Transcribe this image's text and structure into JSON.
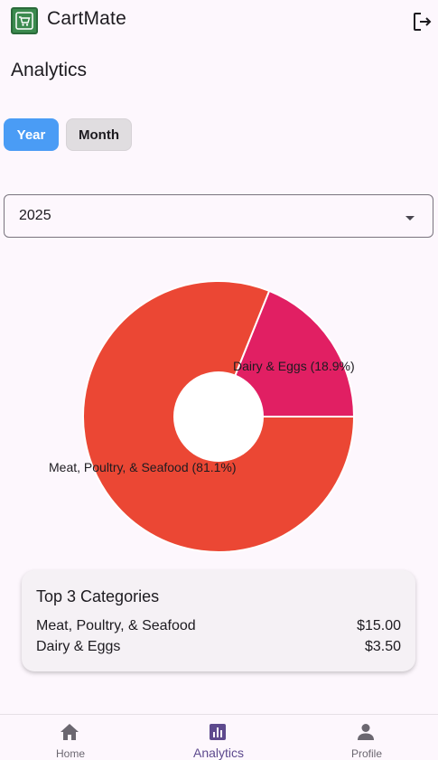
{
  "app": {
    "title": "CartMate",
    "logo_icon": "shopping-cart-icon",
    "logout_icon": "logout-icon"
  },
  "page": {
    "title": "Analytics"
  },
  "period_toggle": {
    "options": [
      "Year",
      "Month"
    ],
    "selected": "Year",
    "colors": {
      "selected_bg": "#4a9cf5",
      "unselected_bg": "#e0dde0"
    }
  },
  "year_select": {
    "value": "2025",
    "icon": "arrow-drop-down-icon"
  },
  "chart_data": {
    "type": "pie",
    "donut": true,
    "categories": [
      "Dairy & Eggs",
      "Meat, Poultry, & Seafood"
    ],
    "values": [
      18.9,
      81.1
    ],
    "labels": [
      "Dairy & Eggs (18.9%)",
      "Meat, Poultry, & Seafood (81.1%)"
    ],
    "colors": [
      "#e11f63",
      "#eb4734"
    ]
  },
  "top_categories": {
    "title": "Top 3 Categories",
    "items": [
      {
        "name": "Meat, Poultry, & Seafood",
        "amount": "$15.00"
      },
      {
        "name": "Dairy & Eggs",
        "amount": "$3.50"
      }
    ]
  },
  "bottom_nav": {
    "items": [
      {
        "label": "Home",
        "icon": "home-icon"
      },
      {
        "label": "Analytics",
        "icon": "analytics-icon"
      },
      {
        "label": "Profile",
        "icon": "person-icon"
      }
    ],
    "active": "Analytics"
  }
}
